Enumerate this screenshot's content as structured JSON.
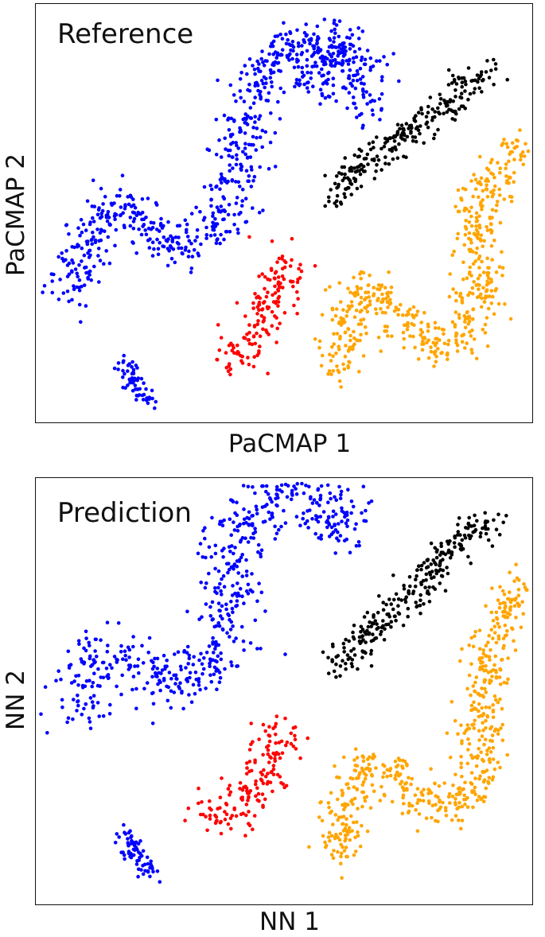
{
  "chart_data": [
    {
      "type": "scatter",
      "title": "Reference",
      "xlabel": "PaCMAP 1",
      "ylabel": "PaCMAP 2",
      "ticks": "none",
      "series": [
        {
          "color": "#0000ff",
          "points_per_unit": 2.2,
          "paths": [
            {
              "pts": [
                [
                  0.07,
                  0.7
                ],
                [
                  0.09,
                  0.61
                ],
                [
                  0.13,
                  0.52
                ],
                [
                  0.17,
                  0.48
                ],
                [
                  0.21,
                  0.51
                ],
                [
                  0.24,
                  0.56
                ],
                [
                  0.29,
                  0.58
                ],
                [
                  0.34,
                  0.55
                ],
                [
                  0.38,
                  0.5
                ],
                [
                  0.4,
                  0.42
                ],
                [
                  0.42,
                  0.32
                ],
                [
                  0.44,
                  0.22
                ],
                [
                  0.48,
                  0.13
                ],
                [
                  0.53,
                  0.08
                ],
                [
                  0.56,
                  0.12
                ],
                [
                  0.57,
                  0.2
                ],
                [
                  0.59,
                  0.13
                ],
                [
                  0.62,
                  0.08
                ],
                [
                  0.65,
                  0.16
                ],
                [
                  0.66,
                  0.26
                ]
              ],
              "spread": 0.028
            },
            {
              "pts": [
                [
                  0.18,
                  0.85
                ],
                [
                  0.19,
                  0.89
                ],
                [
                  0.21,
                  0.92
                ],
                [
                  0.23,
                  0.95
                ]
              ],
              "spread": 0.012
            }
          ]
        },
        {
          "color": "#000000",
          "points_per_unit": 2.2,
          "paths": [
            {
              "pts": [
                [
                  0.6,
                  0.47
                ],
                [
                  0.63,
                  0.41
                ],
                [
                  0.68,
                  0.36
                ],
                [
                  0.74,
                  0.32
                ],
                [
                  0.8,
                  0.26
                ],
                [
                  0.86,
                  0.2
                ],
                [
                  0.89,
                  0.17
                ],
                [
                  0.91,
                  0.16
                ]
              ],
              "spread": 0.018
            }
          ]
        },
        {
          "color": "#ffa500",
          "points_per_unit": 2.2,
          "paths": [
            {
              "pts": [
                [
                  0.61,
                  0.88
                ],
                [
                  0.62,
                  0.8
                ],
                [
                  0.63,
                  0.72
                ],
                [
                  0.67,
                  0.68
                ],
                [
                  0.7,
                  0.69
                ],
                [
                  0.73,
                  0.74
                ],
                [
                  0.77,
                  0.78
                ],
                [
                  0.81,
                  0.82
                ],
                [
                  0.85,
                  0.8
                ],
                [
                  0.88,
                  0.74
                ],
                [
                  0.89,
                  0.66
                ],
                [
                  0.89,
                  0.58
                ],
                [
                  0.88,
                  0.5
                ],
                [
                  0.91,
                  0.44
                ],
                [
                  0.95,
                  0.38
                ],
                [
                  0.98,
                  0.33
                ]
              ],
              "spread": 0.024
            }
          ]
        },
        {
          "color": "#ff0000",
          "points_per_unit": 2.2,
          "paths": [
            {
              "pts": [
                [
                  0.41,
                  0.86
                ],
                [
                  0.41,
                  0.82
                ],
                [
                  0.44,
                  0.77
                ],
                [
                  0.47,
                  0.72
                ],
                [
                  0.5,
                  0.65
                ],
                [
                  0.51,
                  0.6
                ]
              ],
              "spread": 0.024
            }
          ]
        }
      ]
    },
    {
      "type": "scatter",
      "title": "Prediction",
      "xlabel": "NN 1",
      "ylabel": "NN 2",
      "ticks": "none",
      "series": [
        {
          "color": "#0000ff",
          "points_per_unit": 2.2,
          "paths": [
            {
              "pts": [
                [
                  0.08,
                  0.55
                ],
                [
                  0.11,
                  0.45
                ],
                [
                  0.15,
                  0.41
                ],
                [
                  0.2,
                  0.43
                ],
                [
                  0.25,
                  0.48
                ],
                [
                  0.3,
                  0.48
                ],
                [
                  0.35,
                  0.43
                ],
                [
                  0.38,
                  0.36
                ],
                [
                  0.39,
                  0.25
                ],
                [
                  0.4,
                  0.14
                ],
                [
                  0.44,
                  0.07
                ],
                [
                  0.5,
                  0.03
                ],
                [
                  0.55,
                  0.04
                ],
                [
                  0.58,
                  0.08
                ],
                [
                  0.6,
                  0.11
                ],
                [
                  0.62,
                  0.12
                ],
                [
                  0.63,
                  0.09
                ],
                [
                  0.63,
                  0.06
                ]
              ],
              "spread": 0.032
            },
            {
              "pts": [
                [
                  0.18,
                  0.82
                ],
                [
                  0.19,
                  0.86
                ],
                [
                  0.21,
                  0.9
                ],
                [
                  0.23,
                  0.93
                ]
              ],
              "spread": 0.012
            }
          ]
        },
        {
          "color": "#000000",
          "points_per_unit": 2.2,
          "paths": [
            {
              "pts": [
                [
                  0.6,
                  0.45
                ],
                [
                  0.64,
                  0.4
                ],
                [
                  0.69,
                  0.34
                ],
                [
                  0.75,
                  0.28
                ],
                [
                  0.81,
                  0.2
                ],
                [
                  0.86,
                  0.13
                ],
                [
                  0.89,
                  0.1
                ],
                [
                  0.92,
                  0.11
                ]
              ],
              "spread": 0.02
            }
          ]
        },
        {
          "color": "#ffa500",
          "points_per_unit": 2.2,
          "paths": [
            {
              "pts": [
                [
                  0.61,
                  0.89
                ],
                [
                  0.62,
                  0.8
                ],
                [
                  0.63,
                  0.73
                ],
                [
                  0.67,
                  0.67
                ],
                [
                  0.71,
                  0.68
                ],
                [
                  0.74,
                  0.72
                ],
                [
                  0.78,
                  0.75
                ],
                [
                  0.82,
                  0.78
                ],
                [
                  0.86,
                  0.76
                ],
                [
                  0.89,
                  0.7
                ],
                [
                  0.9,
                  0.6
                ],
                [
                  0.9,
                  0.5
                ],
                [
                  0.91,
                  0.4
                ],
                [
                  0.94,
                  0.33
                ],
                [
                  0.97,
                  0.28
                ],
                [
                  0.99,
                  0.24
                ]
              ],
              "spread": 0.024
            }
          ]
        },
        {
          "color": "#ff0000",
          "points_per_unit": 2.2,
          "paths": [
            {
              "pts": [
                [
                  0.34,
                  0.8
                ],
                [
                  0.39,
                  0.78
                ],
                [
                  0.43,
                  0.74
                ],
                [
                  0.47,
                  0.68
                ],
                [
                  0.49,
                  0.63
                ],
                [
                  0.48,
                  0.58
                ]
              ],
              "spread": 0.026
            }
          ]
        }
      ]
    }
  ]
}
